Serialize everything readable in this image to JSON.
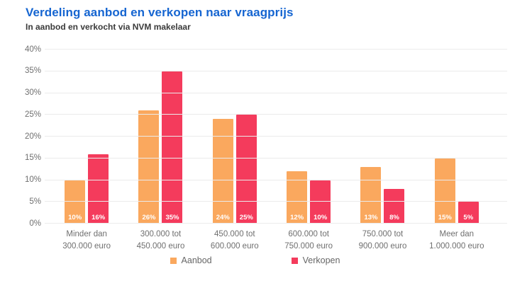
{
  "header": {
    "title": "Verdeling aanbod en verkopen naar vraagprijs",
    "subtitle": "In aanbod en verkocht via NVM makelaar"
  },
  "colors": {
    "title_blue": "#1565D1",
    "aanbod_orange": "#FAA85E",
    "verkopen_pink": "#F43B5C",
    "gridline": "#EBEBEB",
    "axis_text": "#6F6F6F",
    "bar_label_text": "#FFFFFF"
  },
  "chart_data": {
    "type": "bar",
    "title": "Verdeling aanbod en verkopen naar vraagprijs",
    "subtitle": "In aanbod en verkocht via NVM makelaar",
    "categories": [
      "Minder dan\n300.000 euro",
      "300.000 tot\n450.000 euro",
      "450.000 tot\n600.000 euro",
      "600.000 tot\n750.000 euro",
      "750.000 tot\n900.000 euro",
      "Meer dan\n1.000.000 euro"
    ],
    "series": [
      {
        "name": "Aanbod",
        "color": "#FAA85E",
        "values": [
          10,
          26,
          24,
          12,
          13,
          15
        ]
      },
      {
        "name": "Verkopen",
        "color": "#F43B5C",
        "values": [
          16,
          35,
          25,
          10,
          8,
          5
        ]
      }
    ],
    "bar_value_labels": [
      [
        "10%",
        "26%",
        "24%",
        "12%",
        "13%",
        "15%"
      ],
      [
        "16%",
        "35%",
        "25%",
        "10%",
        "8%",
        "5%"
      ]
    ],
    "ylabel": "",
    "xlabel": "",
    "ylim": [
      0,
      40
    ],
    "ytick_step": 5,
    "ytick_suffix": "%",
    "grid": true,
    "legend_position": "bottom"
  }
}
